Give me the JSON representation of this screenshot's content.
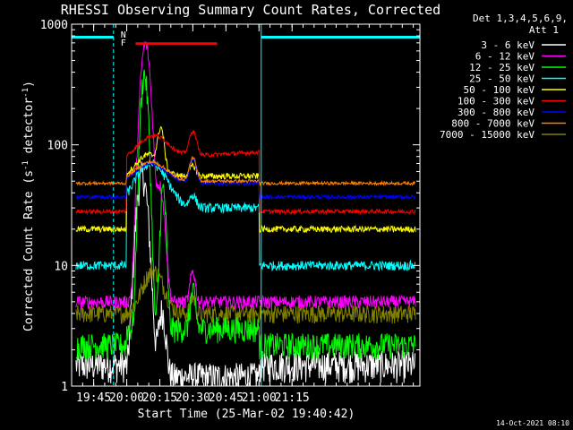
{
  "chart_data": {
    "type": "line",
    "title": "RHESSI Observing Summary Count Rates, Corrected",
    "xlabel": "Start Time (25-Mar-02 19:40:42)",
    "ylabel_main": "Corrected Count Rate (s",
    "ylabel_sup1": "-1",
    "ylabel_mid": " detector",
    "ylabel_sup2": "-1",
    "ylabel_end": ")",
    "y_scale": "log",
    "ylim": [
      1,
      1000
    ],
    "xlim_minutes": [
      -5,
      153
    ],
    "x_ticks": [
      {
        "label": "19:45",
        "minute": 5
      },
      {
        "label": "20:00",
        "minute": 20
      },
      {
        "label": "20:15",
        "minute": 35
      },
      {
        "label": "20:30",
        "minute": 50
      },
      {
        "label": "20:45",
        "minute": 65
      },
      {
        "label": "21:00",
        "minute": 80
      },
      {
        "label": "21:15",
        "minute": 95
      }
    ],
    "y_ticks": [
      {
        "label": "1",
        "value": 1
      },
      {
        "label": "10",
        "value": 10
      },
      {
        "label": "100",
        "value": 100
      },
      {
        "label": "1000",
        "value": 1000
      }
    ],
    "legend_header": [
      "Det 1,3,4,5,6,9,",
      "Att 1"
    ],
    "legend_placement": "right",
    "flags": [
      {
        "label": "N",
        "color": "#00ffff"
      },
      {
        "label": "F",
        "color": "#ff0000"
      }
    ],
    "night_color": "#00ffff",
    "series": [
      {
        "name": "3 - 6 keV",
        "color": "#ffffff"
      },
      {
        "name": "6 - 12 keV",
        "color": "#ff00ff"
      },
      {
        "name": "12 - 25 keV",
        "color": "#00ff00"
      },
      {
        "name": "25 - 50 keV",
        "color": "#00ffff"
      },
      {
        "name": "50 - 100 keV",
        "color": "#ffff00"
      },
      {
        "name": "100 - 300 keV",
        "color": "#ff0000"
      },
      {
        "name": "300 - 800 keV",
        "color": "#0000ff"
      },
      {
        "name": "800 - 7000 keV",
        "color": "#ff8000"
      },
      {
        "name": "7000 - 15000 keV",
        "color": "#808000"
      }
    ]
  },
  "footer_date": "14-Oct-2021 08:10"
}
